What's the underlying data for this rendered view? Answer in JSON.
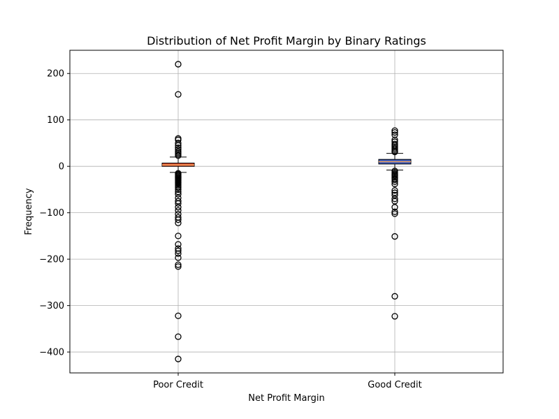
{
  "chart_data": {
    "type": "boxplot",
    "title": "Distribution of Net Profit Margin by Binary Ratings",
    "xlabel": "Net Profit Margin",
    "ylabel": "Frequency",
    "ylim": [
      -445,
      250
    ],
    "yticks": [
      200,
      100,
      0,
      -100,
      -200,
      -300,
      -400
    ],
    "ytick_labels": [
      "200",
      "100",
      "0",
      "−100",
      "−200",
      "−300",
      "−400"
    ],
    "grid": true,
    "categories": [
      "Poor Credit",
      "Good Credit"
    ],
    "boxes": [
      {
        "name": "Poor Credit",
        "color": "#d9472b",
        "whisker_low": -13,
        "q1": 0,
        "median": 3,
        "q3": 7,
        "whisker_high": 20,
        "outliers": [
          220,
          155,
          60,
          57,
          50,
          45,
          40,
          36,
          32,
          29,
          26,
          23,
          -15,
          -17,
          -19,
          -21,
          -23,
          -25,
          -27,
          -29,
          -31,
          -33,
          -35,
          -37,
          -40,
          -43,
          -46,
          -50,
          -55,
          -60,
          -68,
          -75,
          -80,
          -88,
          -95,
          -103,
          -110,
          -115,
          -122,
          -150,
          -168,
          -177,
          -182,
          -188,
          -197,
          -212,
          -216,
          -322,
          -367,
          -415
        ]
      },
      {
        "name": "Good Credit",
        "color": "#3a5bbf",
        "whisker_low": -8,
        "q1": 5,
        "median": 10,
        "q3": 15,
        "whisker_high": 28,
        "outliers": [
          77,
          73,
          68,
          57,
          53,
          48,
          45,
          42,
          39,
          36,
          33,
          31,
          -10,
          -13,
          -16,
          -18,
          -20,
          -23,
          -26,
          -29,
          -33,
          -38,
          -52,
          -57,
          -62,
          -70,
          -75,
          -88,
          -98,
          -102,
          -151,
          -280,
          -323
        ]
      }
    ]
  }
}
